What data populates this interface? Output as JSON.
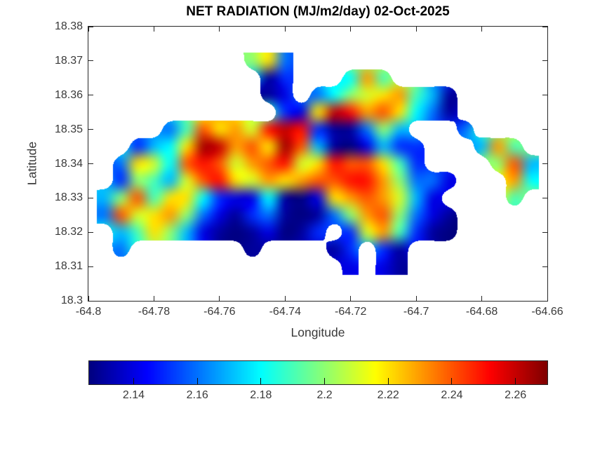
{
  "figure": {
    "background": "#ffffff",
    "text_color": "#3a3a3a",
    "axis_color": "#262626"
  },
  "chart_data": {
    "type": "heatmap",
    "title": "NET RADIATION (MJ/m2/day) 02-Oct-2025",
    "xlabel": "Longitude",
    "ylabel": "Latitude",
    "xlim": [
      -64.8,
      -64.66
    ],
    "ylim": [
      18.3,
      18.38
    ],
    "xticks": [
      -64.8,
      -64.78,
      -64.76,
      -64.74,
      -64.72,
      -64.7,
      -64.68,
      -64.66
    ],
    "x_tick_labels": [
      "-64.8",
      "-64.78",
      "-64.76",
      "-64.74",
      "-64.72",
      "-64.7",
      "-64.68",
      "-64.66"
    ],
    "yticks": [
      18.3,
      18.31,
      18.32,
      18.33,
      18.34,
      18.35,
      18.36,
      18.37,
      18.38
    ],
    "y_tick_labels": [
      "18.3",
      "18.31",
      "18.32",
      "18.33",
      "18.34",
      "18.35",
      "18.36",
      "18.37",
      "18.38"
    ],
    "grid_lines": false,
    "colormap": "jet",
    "color_axis": [
      2.126,
      2.27
    ],
    "colorbar": {
      "orientation": "horizontal",
      "position": "south",
      "ticks": [
        2.14,
        2.16,
        2.18,
        2.2,
        2.22,
        2.24,
        2.26
      ],
      "tick_labels": [
        "2.14",
        "2.16",
        "2.18",
        "2.2",
        "2.22",
        "2.24",
        "2.26"
      ]
    },
    "grid": {
      "lon": [
        -64.795,
        -64.79,
        -64.785,
        -64.78,
        -64.775,
        -64.77,
        -64.765,
        -64.76,
        -64.755,
        -64.75,
        -64.745,
        -64.74,
        -64.735,
        -64.73,
        -64.725,
        -64.72,
        -64.715,
        -64.71,
        -64.705,
        -64.7,
        -64.695,
        -64.69,
        -64.685,
        -64.68,
        -64.675,
        -64.67,
        -64.665
      ],
      "lat": [
        18.37,
        18.365,
        18.36,
        18.355,
        18.35,
        18.345,
        18.34,
        18.335,
        18.33,
        18.325,
        18.32,
        18.315,
        18.31
      ],
      "values": [
        [
          null,
          null,
          null,
          null,
          null,
          null,
          null,
          null,
          null,
          2.2,
          2.22,
          2.16,
          null,
          null,
          null,
          null,
          null,
          null,
          null,
          null,
          null,
          null,
          null,
          null,
          null,
          null,
          null
        ],
        [
          null,
          null,
          null,
          null,
          null,
          null,
          null,
          null,
          null,
          null,
          2.13,
          2.15,
          null,
          null,
          null,
          2.18,
          2.23,
          2.19,
          null,
          null,
          null,
          null,
          null,
          null,
          null,
          null,
          null
        ],
        [
          null,
          null,
          null,
          null,
          null,
          null,
          null,
          null,
          null,
          null,
          2.13,
          2.14,
          null,
          2.16,
          2.18,
          2.2,
          2.21,
          2.22,
          2.23,
          2.19,
          2.17,
          2.13,
          null,
          null,
          null,
          null,
          null
        ],
        [
          null,
          null,
          null,
          null,
          null,
          null,
          null,
          null,
          null,
          null,
          null,
          2.15,
          2.14,
          2.22,
          2.26,
          2.25,
          2.23,
          2.24,
          2.22,
          2.18,
          2.16,
          2.13,
          null,
          null,
          null,
          null,
          null
        ],
        [
          null,
          null,
          null,
          null,
          2.16,
          2.19,
          2.24,
          2.22,
          2.23,
          2.21,
          2.25,
          2.26,
          2.25,
          2.15,
          2.13,
          2.13,
          2.16,
          2.2,
          2.17,
          null,
          null,
          null,
          2.16,
          null,
          null,
          null,
          null
        ],
        [
          null,
          null,
          2.15,
          2.17,
          2.18,
          2.22,
          2.265,
          2.26,
          2.23,
          2.24,
          2.22,
          2.265,
          2.24,
          2.17,
          2.13,
          2.12,
          2.14,
          2.17,
          2.15,
          2.15,
          null,
          null,
          null,
          2.17,
          2.23,
          2.19,
          null
        ],
        [
          null,
          2.16,
          2.22,
          2.21,
          2.18,
          2.24,
          2.25,
          2.24,
          2.21,
          2.23,
          2.24,
          2.25,
          2.21,
          2.22,
          2.25,
          2.24,
          2.24,
          2.22,
          2.19,
          2.15,
          null,
          null,
          null,
          null,
          2.2,
          2.24,
          2.17
        ],
        [
          null,
          2.15,
          2.2,
          2.19,
          2.17,
          2.21,
          2.24,
          2.25,
          2.22,
          2.21,
          2.23,
          2.22,
          2.23,
          2.24,
          2.24,
          2.25,
          2.25,
          2.23,
          2.2,
          2.16,
          2.16,
          2.14,
          null,
          null,
          null,
          2.23,
          2.18
        ],
        [
          2.17,
          2.2,
          2.24,
          2.19,
          2.22,
          2.22,
          2.18,
          2.15,
          2.14,
          2.14,
          2.18,
          2.13,
          2.12,
          2.14,
          2.22,
          2.23,
          2.24,
          2.23,
          2.21,
          2.17,
          2.14,
          null,
          null,
          null,
          null,
          2.19,
          null
        ],
        [
          2.16,
          2.24,
          2.21,
          2.22,
          2.23,
          2.2,
          2.16,
          2.14,
          2.13,
          2.15,
          2.16,
          2.13,
          2.12,
          2.13,
          2.16,
          2.2,
          2.23,
          2.24,
          2.2,
          2.16,
          2.14,
          2.13,
          null,
          null,
          null,
          null,
          null
        ],
        [
          null,
          2.17,
          2.19,
          2.22,
          2.2,
          2.17,
          2.14,
          2.13,
          2.12,
          2.13,
          2.14,
          2.12,
          2.13,
          2.15,
          null,
          2.15,
          2.21,
          2.23,
          2.19,
          2.15,
          2.13,
          2.12,
          null,
          null,
          null,
          null,
          null
        ],
        [
          null,
          2.16,
          null,
          null,
          null,
          null,
          null,
          null,
          null,
          2.13,
          null,
          null,
          null,
          null,
          2.13,
          2.15,
          null,
          2.15,
          2.13,
          null,
          null,
          null,
          null,
          null,
          null,
          null,
          null
        ],
        [
          null,
          null,
          null,
          null,
          null,
          null,
          null,
          null,
          null,
          null,
          null,
          null,
          null,
          null,
          null,
          2.14,
          null,
          2.14,
          2.13,
          null,
          null,
          null,
          null,
          null,
          null,
          null,
          null
        ]
      ]
    }
  }
}
